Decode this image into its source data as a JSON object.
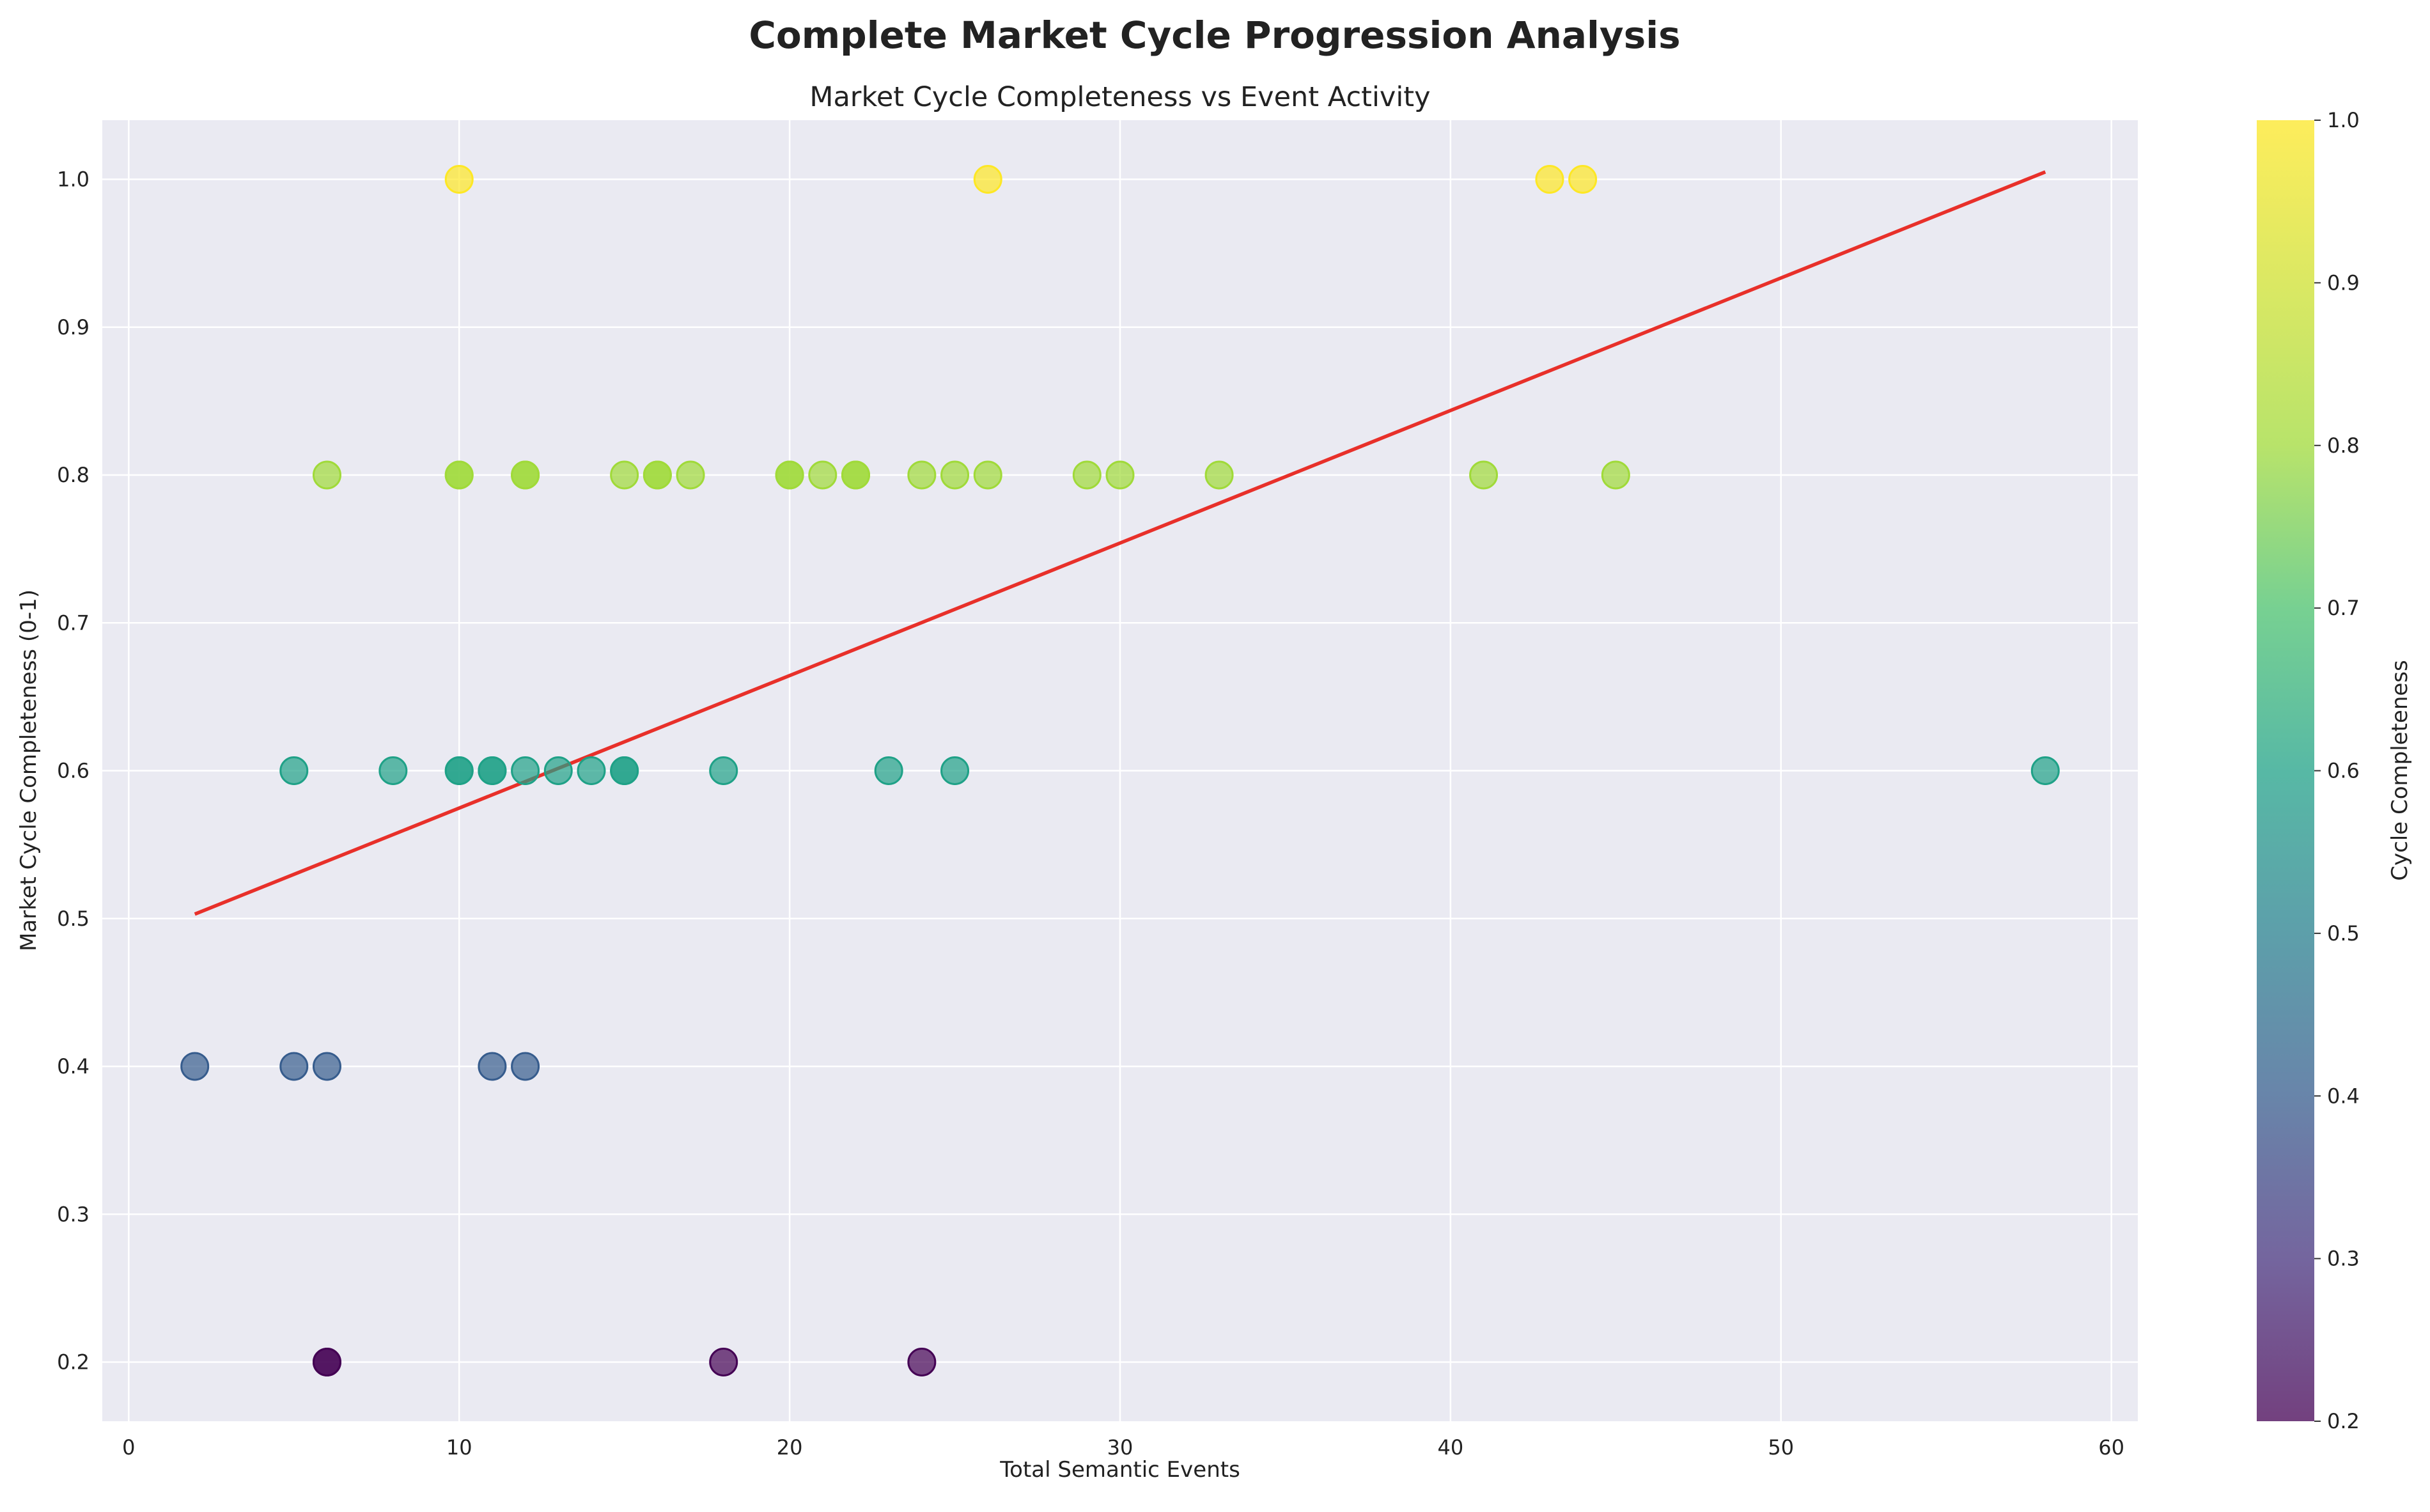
{
  "chart_data": {
    "type": "scatter",
    "suptitle": "Complete Market Cycle Progression Analysis",
    "title": "Market Cycle Completeness vs Event Activity",
    "xlabel": "Total Semantic Events",
    "ylabel": "Market Cycle Completeness (0-1)",
    "xlim": [
      -0.8,
      60.8
    ],
    "ylim": [
      0.16,
      1.04
    ],
    "xticks": [
      "0",
      "10",
      "20",
      "30",
      "40",
      "50",
      "60"
    ],
    "yticks": [
      "0.2",
      "0.3",
      "0.4",
      "0.5",
      "0.6",
      "0.7",
      "0.8",
      "0.9",
      "1.0"
    ],
    "grid": true,
    "colormap": "viridis",
    "colorbar": {
      "label": "Cycle Completeness",
      "ticks": [
        "0.2",
        "0.3",
        "0.4",
        "0.5",
        "0.6",
        "0.7",
        "0.8",
        "0.9",
        "1.0"
      ],
      "range": [
        0.2,
        1.0
      ]
    },
    "points": [
      {
        "x": 10,
        "y": 1.0
      },
      {
        "x": 26,
        "y": 1.0
      },
      {
        "x": 43,
        "y": 1.0
      },
      {
        "x": 44,
        "y": 1.0
      },
      {
        "x": 6,
        "y": 0.8
      },
      {
        "x": 10,
        "y": 0.8
      },
      {
        "x": 10,
        "y": 0.8
      },
      {
        "x": 12,
        "y": 0.8
      },
      {
        "x": 12,
        "y": 0.8
      },
      {
        "x": 15,
        "y": 0.8
      },
      {
        "x": 16,
        "y": 0.8
      },
      {
        "x": 16,
        "y": 0.8
      },
      {
        "x": 17,
        "y": 0.8
      },
      {
        "x": 20,
        "y": 0.8
      },
      {
        "x": 20,
        "y": 0.8
      },
      {
        "x": 21,
        "y": 0.8
      },
      {
        "x": 22,
        "y": 0.8
      },
      {
        "x": 22,
        "y": 0.8
      },
      {
        "x": 24,
        "y": 0.8
      },
      {
        "x": 25,
        "y": 0.8
      },
      {
        "x": 26,
        "y": 0.8
      },
      {
        "x": 29,
        "y": 0.8
      },
      {
        "x": 30,
        "y": 0.8
      },
      {
        "x": 33,
        "y": 0.8
      },
      {
        "x": 41,
        "y": 0.8
      },
      {
        "x": 45,
        "y": 0.8
      },
      {
        "x": 5,
        "y": 0.6
      },
      {
        "x": 8,
        "y": 0.6
      },
      {
        "x": 10,
        "y": 0.6
      },
      {
        "x": 10,
        "y": 0.6
      },
      {
        "x": 11,
        "y": 0.6
      },
      {
        "x": 11,
        "y": 0.6
      },
      {
        "x": 12,
        "y": 0.6
      },
      {
        "x": 13,
        "y": 0.6
      },
      {
        "x": 14,
        "y": 0.6
      },
      {
        "x": 15,
        "y": 0.6
      },
      {
        "x": 15,
        "y": 0.6
      },
      {
        "x": 18,
        "y": 0.6
      },
      {
        "x": 23,
        "y": 0.6
      },
      {
        "x": 25,
        "y": 0.6
      },
      {
        "x": 58,
        "y": 0.6
      },
      {
        "x": 2,
        "y": 0.4
      },
      {
        "x": 5,
        "y": 0.4
      },
      {
        "x": 6,
        "y": 0.4
      },
      {
        "x": 11,
        "y": 0.4
      },
      {
        "x": 12,
        "y": 0.4
      },
      {
        "x": 6,
        "y": 0.2
      },
      {
        "x": 6,
        "y": 0.2
      },
      {
        "x": 18,
        "y": 0.2
      },
      {
        "x": 24,
        "y": 0.2
      }
    ],
    "trend_line": {
      "color": "#e8302a",
      "x": [
        2,
        58
      ],
      "y": [
        0.503,
        1.005
      ]
    }
  }
}
